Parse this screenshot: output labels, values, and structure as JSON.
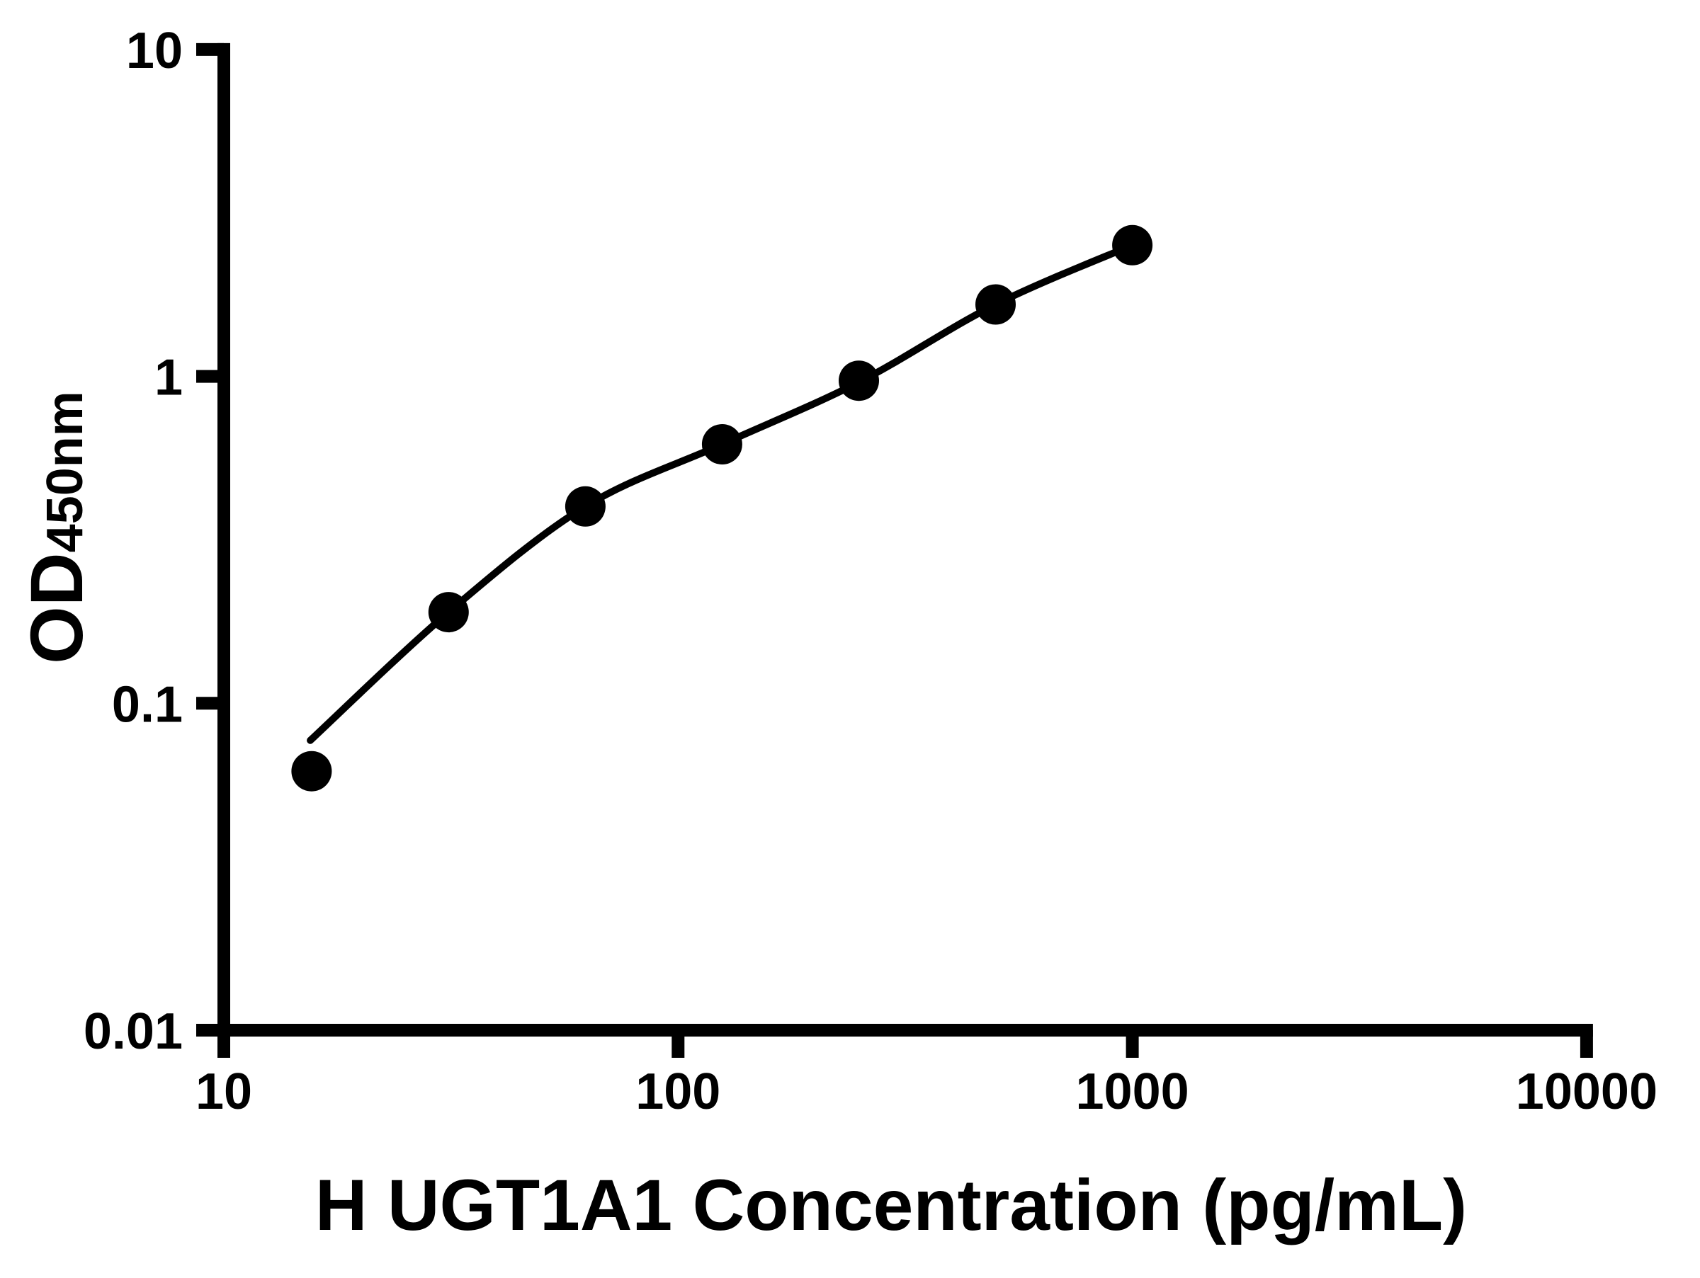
{
  "chart_data": {
    "type": "scatter",
    "title": "",
    "xlabel": "H UGT1A1 Concentration (pg/mL)",
    "ylabel": "OD450nm",
    "ylabel_main": "OD",
    "ylabel_sub": "450nm",
    "x_scale": "log10",
    "y_scale": "log10",
    "xlim": [
      10,
      10000
    ],
    "ylim": [
      0.01,
      10
    ],
    "grid": false,
    "legend_position": "none",
    "background_color": "#ffffff",
    "foreground_color": "#000000",
    "x_ticks": [
      {
        "value": 10,
        "label": "10"
      },
      {
        "value": 100,
        "label": "100"
      },
      {
        "value": 1000,
        "label": "1000"
      },
      {
        "value": 10000,
        "label": "10000"
      }
    ],
    "y_ticks": [
      {
        "value": 10,
        "label": "10"
      },
      {
        "value": 1,
        "label": "1"
      },
      {
        "value": 0.1,
        "label": "0.1"
      },
      {
        "value": 0.01,
        "label": "0.01"
      }
    ],
    "series": [
      {
        "name": "standard-points",
        "marker": "circle",
        "color": "#000000",
        "points": [
          {
            "x": 15.6,
            "y": 0.062
          },
          {
            "x": 31.25,
            "y": 0.19
          },
          {
            "x": 62.5,
            "y": 0.4
          },
          {
            "x": 125,
            "y": 0.62
          },
          {
            "x": 250,
            "y": 0.97
          },
          {
            "x": 500,
            "y": 1.66
          },
          {
            "x": 1000,
            "y": 2.52
          }
        ]
      }
    ],
    "fit_curve": {
      "name": "fitted-standard-curve",
      "color": "#000000",
      "points": [
        {
          "x": 15.5,
          "y": 0.077
        },
        {
          "x": 31.25,
          "y": 0.19
        },
        {
          "x": 62.5,
          "y": 0.4
        },
        {
          "x": 125,
          "y": 0.62
        },
        {
          "x": 250,
          "y": 0.96
        },
        {
          "x": 500,
          "y": 1.66
        },
        {
          "x": 1000,
          "y": 2.52
        }
      ]
    }
  }
}
